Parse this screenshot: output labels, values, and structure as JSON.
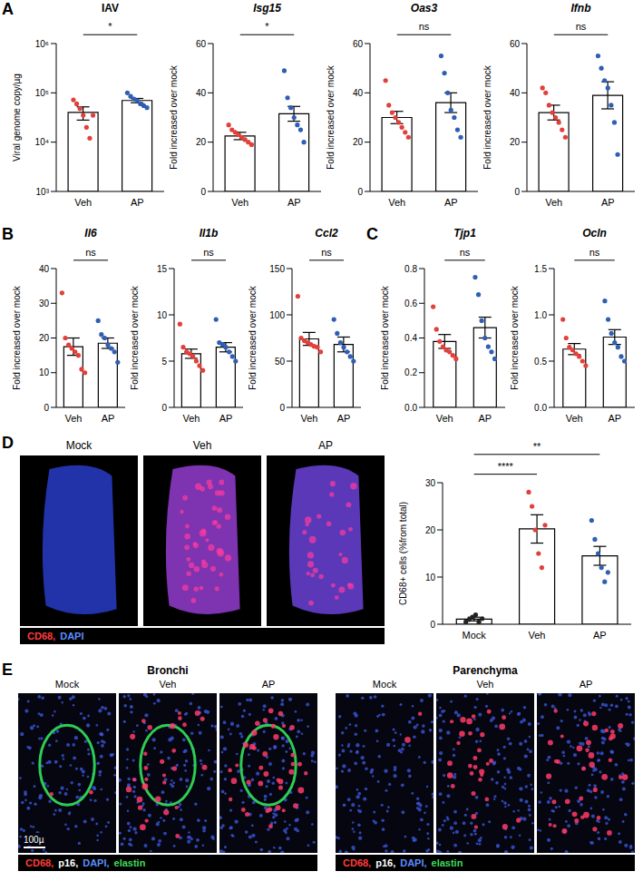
{
  "chart_data": [
    {
      "panel": "A",
      "type": "bar",
      "title": "IAV",
      "ylabel": "Viral genome copy/µg",
      "log": "y",
      "categories": [
        "Veh",
        "AP"
      ],
      "values": [
        40000,
        70000
      ],
      "errors": [
        12000,
        7000
      ],
      "points": [
        [
          72000,
          60000,
          48000,
          35000,
          20000,
          12000,
          35000
        ],
        [
          100000,
          85000,
          75000,
          70000,
          60000,
          55000,
          50000
        ]
      ],
      "colors": [
        "#e2403a",
        "#2f5fb3"
      ],
      "ylim": [
        1000,
        1000000
      ],
      "yticks": [
        {
          "value": 1000,
          "label": "10³"
        },
        {
          "value": 10000,
          "label": "10⁴"
        },
        {
          "value": 100000,
          "label": "10⁵"
        },
        {
          "value": 1000000,
          "label": "10⁶"
        }
      ],
      "comparisons": [
        {
          "pair": [
            "Veh",
            "AP"
          ],
          "label": "*"
        }
      ]
    },
    {
      "panel": "A",
      "type": "bar",
      "title": "Isg15",
      "ylabel": "Fold increased over mock",
      "categories": [
        "Veh",
        "AP"
      ],
      "values": [
        22.5,
        31.5
      ],
      "errors": [
        1.5,
        3
      ],
      "points": [
        [
          27,
          25,
          24,
          23,
          22,
          21,
          20,
          19
        ],
        [
          49,
          38,
          34,
          30,
          27,
          25,
          20
        ]
      ],
      "colors": [
        "#e2403a",
        "#2f5fb3"
      ],
      "ylim": [
        0,
        60
      ],
      "yticks": [
        0,
        20,
        40,
        60
      ],
      "comparisons": [
        {
          "pair": [
            "Veh",
            "AP"
          ],
          "label": "*"
        }
      ]
    },
    {
      "panel": "A",
      "type": "bar",
      "title": "Oas3",
      "ylabel": "Fold increased over mock",
      "categories": [
        "Veh",
        "AP"
      ],
      "values": [
        30,
        36
      ],
      "errors": [
        2.5,
        4
      ],
      "points": [
        [
          45,
          35,
          32,
          30,
          28,
          26,
          24,
          22
        ],
        [
          55,
          48,
          40,
          33,
          30,
          25,
          22
        ]
      ],
      "colors": [
        "#e2403a",
        "#2f5fb3"
      ],
      "ylim": [
        0,
        60
      ],
      "yticks": [
        0,
        20,
        40,
        60
      ],
      "comparisons": [
        {
          "pair": [
            "Veh",
            "AP"
          ],
          "label": "ns"
        }
      ]
    },
    {
      "panel": "A",
      "type": "bar",
      "title": "Ifnb",
      "ylabel": "Fold increased over mock",
      "categories": [
        "Veh",
        "AP"
      ],
      "values": [
        32,
        39
      ],
      "errors": [
        3,
        5.5
      ],
      "points": [
        [
          42,
          40,
          35,
          32,
          30,
          28,
          25,
          22
        ],
        [
          55,
          50,
          45,
          42,
          35,
          28,
          15
        ]
      ],
      "colors": [
        "#e2403a",
        "#2f5fb3"
      ],
      "ylim": [
        0,
        60
      ],
      "yticks": [
        0,
        20,
        40,
        60
      ],
      "comparisons": [
        {
          "pair": [
            "Veh",
            "AP"
          ],
          "label": "ns"
        }
      ]
    },
    {
      "panel": "B",
      "type": "bar",
      "title": "Il6",
      "ylabel": "Fold increased over mock",
      "categories": [
        "Veh",
        "AP"
      ],
      "values": [
        17.5,
        18.5
      ],
      "errors": [
        2.5,
        1.5
      ],
      "points": [
        [
          33,
          20,
          18,
          17,
          16,
          15,
          11,
          10
        ],
        [
          25,
          21,
          20,
          18,
          17,
          16,
          13
        ]
      ],
      "colors": [
        "#e2403a",
        "#2f5fb3"
      ],
      "ylim": [
        0,
        40
      ],
      "yticks": [
        0,
        10,
        20,
        30,
        40
      ],
      "comparisons": [
        {
          "pair": [
            "Veh",
            "AP"
          ],
          "label": "ns"
        }
      ]
    },
    {
      "panel": "B",
      "type": "bar",
      "title": "Il1b",
      "ylabel": "Fold increased over mock",
      "categories": [
        "Veh",
        "AP"
      ],
      "values": [
        5.8,
        6.5
      ],
      "errors": [
        0.5,
        0.5
      ],
      "points": [
        [
          9,
          6.5,
          6,
          5.8,
          5.5,
          5,
          4.5,
          4
        ],
        [
          9.5,
          7,
          6.8,
          6.5,
          6,
          5.5,
          5
        ]
      ],
      "colors": [
        "#e2403a",
        "#2f5fb3"
      ],
      "ylim": [
        0,
        15
      ],
      "yticks": [
        0,
        5,
        10,
        15
      ],
      "comparisons": [
        {
          "pair": [
            "Veh",
            "AP"
          ],
          "label": "ns"
        }
      ]
    },
    {
      "panel": "B",
      "type": "bar",
      "title": "Ccl2",
      "ylabel": "Fold increased over mock",
      "categories": [
        "Veh",
        "AP"
      ],
      "values": [
        74,
        68
      ],
      "errors": [
        7,
        8
      ],
      "points": [
        [
          120,
          75,
          72,
          70,
          68,
          66,
          65,
          60
        ],
        [
          95,
          80,
          70,
          65,
          60,
          55,
          50
        ]
      ],
      "colors": [
        "#e2403a",
        "#2f5fb3"
      ],
      "ylim": [
        0,
        150
      ],
      "yticks": [
        0,
        50,
        100,
        150
      ],
      "comparisons": [
        {
          "pair": [
            "Veh",
            "AP"
          ],
          "label": "ns"
        }
      ]
    },
    {
      "panel": "C",
      "type": "bar",
      "title": "Tjp1",
      "ylabel": "Fold increased over mock",
      "categories": [
        "Veh",
        "AP"
      ],
      "values": [
        0.38,
        0.46
      ],
      "errors": [
        0.04,
        0.06
      ],
      "points": [
        [
          0.58,
          0.45,
          0.38,
          0.35,
          0.33,
          0.32,
          0.3,
          0.28
        ],
        [
          0.75,
          0.65,
          0.5,
          0.4,
          0.35,
          0.32,
          0.28
        ]
      ],
      "colors": [
        "#e2403a",
        "#2f5fb3"
      ],
      "ylim": [
        0,
        0.8
      ],
      "yticks": [
        {
          "value": 0,
          "label": "0.0"
        },
        0.2,
        0.4,
        0.6,
        0.8
      ],
      "comparisons": [
        {
          "pair": [
            "Veh",
            "AP"
          ],
          "label": "ns"
        }
      ]
    },
    {
      "panel": "C",
      "type": "bar",
      "title": "Ocln",
      "ylabel": "Fold increased over mock",
      "categories": [
        "Veh",
        "AP"
      ],
      "values": [
        0.63,
        0.76
      ],
      "errors": [
        0.06,
        0.08
      ],
      "points": [
        [
          0.95,
          0.75,
          0.65,
          0.62,
          0.58,
          0.55,
          0.5,
          0.45
        ],
        [
          1.15,
          0.95,
          0.8,
          0.7,
          0.65,
          0.55,
          0.5
        ]
      ],
      "colors": [
        "#e2403a",
        "#2f5fb3"
      ],
      "ylim": [
        0,
        1.5
      ],
      "yticks": [
        {
          "value": 0,
          "label": "0.0"
        },
        0.5,
        {
          "value": 1,
          "label": "1.0"
        },
        1.5
      ],
      "comparisons": [
        {
          "pair": [
            "Veh",
            "AP"
          ],
          "label": "ns"
        }
      ]
    },
    {
      "panel": "D",
      "type": "bar",
      "ylabel": "CD68+ cells (%from total)",
      "categories": [
        "Mock",
        "Veh",
        "AP"
      ],
      "values": [
        1.1,
        20.2,
        14.5
      ],
      "errors": [
        0.4,
        3,
        2
      ],
      "points": [
        [
          0.5,
          1,
          1.5,
          2,
          0.5,
          1.2
        ],
        [
          28,
          25,
          20,
          15,
          12,
          21
        ],
        [
          22,
          18,
          15,
          12,
          9,
          11
        ]
      ],
      "colors": [
        "#222222",
        "#e2403a",
        "#2f5fb3"
      ],
      "ylim": [
        0,
        30
      ],
      "yticks": [
        0,
        10,
        20,
        30
      ],
      "comparisons": [
        {
          "pair": [
            "Mock",
            "Veh"
          ],
          "label": "****"
        },
        {
          "pair": [
            "Mock",
            "AP"
          ],
          "label": "**"
        }
      ]
    }
  ],
  "images": {
    "D": {
      "labels": [
        "Mock",
        "Veh",
        "AP"
      ],
      "stains": [
        {
          "text": "CD68,",
          "color": "#ff3b3b"
        },
        {
          "text": "DAPI",
          "color": "#5a8dff"
        }
      ]
    },
    "E": {
      "letter": "E",
      "groups": [
        {
          "title": "Bronchi",
          "labels": [
            "Mock",
            "Veh",
            "AP"
          ]
        },
        {
          "title": "Parenchyma",
          "labels": [
            "Mock",
            "Veh",
            "AP"
          ]
        }
      ],
      "stains": [
        {
          "text": "CD68,",
          "color": "#ff3b3b"
        },
        {
          "text": "p16,",
          "color": "#ffffff"
        },
        {
          "text": "DAPI,",
          "color": "#5a8dff"
        },
        {
          "text": "elastin",
          "color": "#3ddc5a"
        }
      ],
      "scale_bar": "100µ"
    }
  }
}
